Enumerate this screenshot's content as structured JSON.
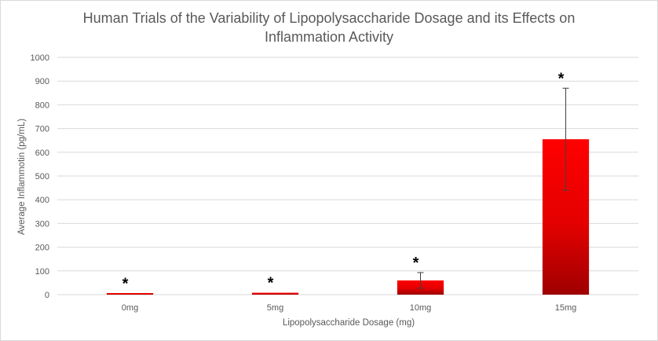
{
  "chart_data": {
    "type": "bar",
    "title_line1": "Human Trials of the Variability of Lipopolysaccharide Dosage and its Effects on",
    "title_line2": "Inflammation Activity",
    "xlabel": "Lipopolysaccharide Dosage (mg)",
    "ylabel": "Average Inflammotin (pg/mL)",
    "categories": [
      "0mg",
      "5mg",
      "10mg",
      "15mg"
    ],
    "values": [
      5,
      8,
      60,
      655
    ],
    "error_upper": [
      5,
      8,
      93,
      870
    ],
    "error_lower": [
      5,
      8,
      27,
      440
    ],
    "annotations": [
      "*",
      "*",
      "*",
      "*"
    ],
    "ylim": [
      0,
      1000
    ],
    "yticks": [
      0,
      100,
      200,
      300,
      400,
      500,
      600,
      700,
      800,
      900,
      1000
    ],
    "grid": true,
    "legend": "none",
    "colors": {
      "bar_top": "#ff0000",
      "bar_bottom": "#9e0000",
      "grid": "#d9d9d9",
      "text": "#595959"
    }
  }
}
